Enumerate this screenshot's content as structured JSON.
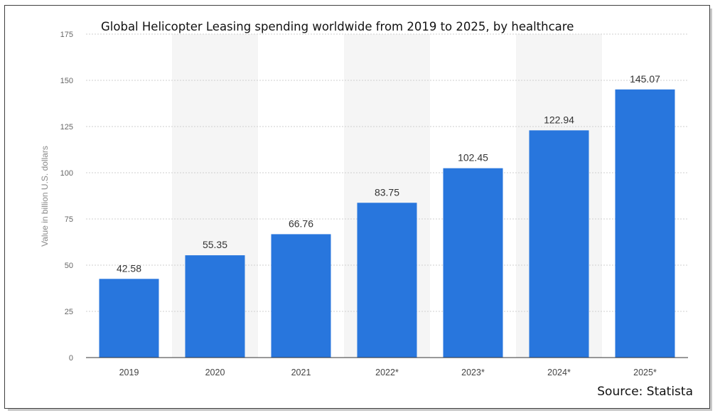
{
  "chart_data": {
    "type": "bar",
    "title": "Global Helicopter Leasing spending worldwide from 2019 to 2025, by healthcare",
    "ylabel": "Value in billion U.S. dollars",
    "xlabel": "",
    "categories": [
      "2019",
      "2020",
      "2021",
      "2022*",
      "2023*",
      "2024*",
      "2025*"
    ],
    "values": [
      42.58,
      55.35,
      66.76,
      83.75,
      102.45,
      122.94,
      145.07
    ],
    "value_labels": [
      "42.58",
      "55.35",
      "66.76",
      "83.75",
      "102.45",
      "122.94",
      "145.07"
    ],
    "ylim": [
      0,
      175
    ],
    "yticks": [
      "0",
      "25",
      "50",
      "75",
      "100",
      "125",
      "150",
      "175"
    ],
    "grid": true,
    "bar_color": "#2876dd",
    "source": "Source: Statista"
  }
}
